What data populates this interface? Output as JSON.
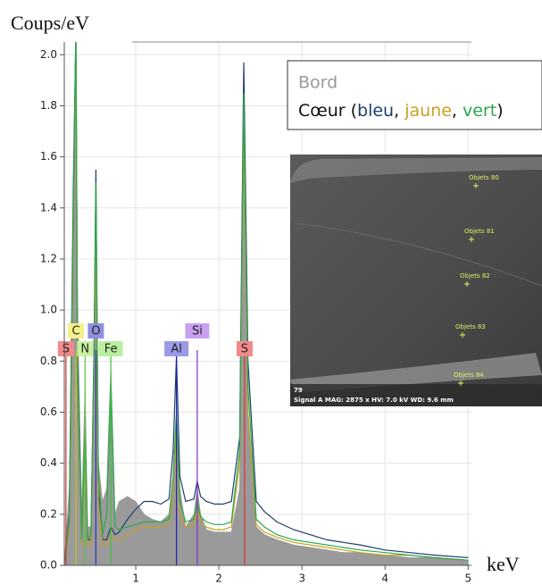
{
  "chart_data": {
    "type": "line",
    "ylabel": "Coups/eV",
    "xlabel": "keV",
    "xlim": [
      0.14,
      5.04
    ],
    "ylim": [
      0,
      2.05
    ],
    "xticks": [
      1,
      2,
      3,
      4,
      5
    ],
    "yticks": [
      {
        "value": 0,
        "label": "0.0"
      },
      0.2,
      0.4,
      0.6,
      0.8,
      {
        "value": 1,
        "label": "1.0"
      },
      1.2,
      1.4,
      1.6,
      1.8,
      {
        "value": 2,
        "label": "2.0"
      }
    ],
    "grid": true,
    "x": [
      0.15,
      0.2,
      0.25,
      0.28,
      0.3,
      0.35,
      0.39,
      0.42,
      0.46,
      0.5,
      0.52,
      0.55,
      0.6,
      0.65,
      0.7,
      0.75,
      0.8,
      0.9,
      1.0,
      1.1,
      1.2,
      1.3,
      1.4,
      1.45,
      1.49,
      1.53,
      1.6,
      1.7,
      1.74,
      1.78,
      1.85,
      1.95,
      2.05,
      2.15,
      2.25,
      2.3,
      2.35,
      2.45,
      2.55,
      2.7,
      2.9,
      3.1,
      3.3,
      3.5,
      3.7,
      4.0,
      4.3,
      4.6,
      5.0
    ],
    "series": [
      {
        "name": "Bord",
        "color": "#9a9a9a",
        "fill": true,
        "values": [
          0.05,
          0.3,
          1.2,
          2.1,
          1.0,
          0.2,
          0.7,
          0.15,
          0.15,
          0.8,
          1.45,
          0.4,
          0.25,
          0.3,
          0.78,
          0.2,
          0.25,
          0.27,
          0.25,
          0.2,
          0.18,
          0.17,
          0.2,
          0.35,
          0.6,
          0.3,
          0.15,
          0.2,
          0.3,
          0.2,
          0.14,
          0.13,
          0.13,
          0.13,
          0.3,
          1.6,
          0.6,
          0.15,
          0.12,
          0.1,
          0.08,
          0.07,
          0.06,
          0.05,
          0.05,
          0.04,
          0.03,
          0.03,
          0.02
        ]
      },
      {
        "name": "bleu",
        "color": "#1e3c6e",
        "values": [
          0.02,
          0.2,
          1.5,
          2.1,
          0.8,
          0.1,
          0.5,
          0.1,
          0.1,
          0.9,
          1.55,
          0.3,
          0.1,
          0.1,
          0.15,
          0.12,
          0.13,
          0.18,
          0.22,
          0.25,
          0.25,
          0.24,
          0.26,
          0.45,
          0.82,
          0.35,
          0.25,
          0.26,
          0.33,
          0.27,
          0.25,
          0.24,
          0.24,
          0.25,
          0.5,
          1.97,
          0.8,
          0.25,
          0.21,
          0.17,
          0.14,
          0.12,
          0.1,
          0.09,
          0.08,
          0.06,
          0.05,
          0.04,
          0.03
        ]
      },
      {
        "name": "jaune",
        "color": "#c8a020",
        "values": [
          0.02,
          0.15,
          1.3,
          2.1,
          0.7,
          0.08,
          0.45,
          0.08,
          0.08,
          0.8,
          1.3,
          0.25,
          0.08,
          0.08,
          0.12,
          0.1,
          0.1,
          0.12,
          0.14,
          0.15,
          0.15,
          0.15,
          0.16,
          0.3,
          0.55,
          0.2,
          0.15,
          0.16,
          0.22,
          0.17,
          0.15,
          0.14,
          0.14,
          0.15,
          0.4,
          1.75,
          0.6,
          0.16,
          0.13,
          0.11,
          0.09,
          0.08,
          0.07,
          0.06,
          0.05,
          0.04,
          0.04,
          0.03,
          0.02
        ]
      },
      {
        "name": "vert",
        "color": "#2aa84a",
        "values": [
          0.02,
          0.18,
          1.4,
          2.1,
          0.75,
          0.1,
          0.55,
          0.1,
          0.12,
          0.85,
          1.5,
          0.35,
          0.12,
          0.2,
          0.72,
          0.15,
          0.14,
          0.15,
          0.16,
          0.17,
          0.17,
          0.17,
          0.18,
          0.35,
          0.6,
          0.25,
          0.17,
          0.18,
          0.25,
          0.19,
          0.17,
          0.16,
          0.16,
          0.17,
          0.45,
          1.85,
          0.7,
          0.18,
          0.15,
          0.12,
          0.1,
          0.09,
          0.08,
          0.07,
          0.06,
          0.05,
          0.04,
          0.03,
          0.02
        ]
      }
    ],
    "legend": [
      {
        "text": "Bord",
        "color": "#9a9a9a"
      },
      {
        "text": "Cœur (",
        "color": "#111111"
      },
      {
        "text": "bleu",
        "color": "#1e3c6e"
      },
      {
        "text": ", ",
        "color": "#111111"
      },
      {
        "text": "jaune",
        "color": "#c8a020"
      },
      {
        "text": ", ",
        "color": "#111111"
      },
      {
        "text": "vert",
        "color": "#2aa84a"
      },
      {
        "text": ")",
        "color": "#111111"
      }
    ],
    "elements": [
      {
        "label": "S",
        "x": 0.16,
        "color": "#f08a8a",
        "line": "#e03030"
      },
      {
        "label": "C",
        "x": 0.28,
        "color": "#f6f08a",
        "line": "#c8c020"
      },
      {
        "label": "N",
        "x": 0.39,
        "color": "#c8f0a0",
        "line": "#60c040"
      },
      {
        "label": "O",
        "x": 0.52,
        "color": "#8f8fe0",
        "line": "#3030c0"
      },
      {
        "label": "Fe",
        "x": 0.7,
        "color": "#b8f0a0",
        "line": "#40c040"
      },
      {
        "label": "Al",
        "x": 1.49,
        "color": "#9a9ae8",
        "line": "#2020b0"
      },
      {
        "label": "Si",
        "x": 1.74,
        "color": "#c9a0f0",
        "line": "#8030c0"
      },
      {
        "label": "S",
        "x": 2.31,
        "color": "#f08a8a",
        "line": "#e03030"
      }
    ]
  },
  "inset": {
    "objects": [
      "Objets 80",
      "Objets 81",
      "Objets 82",
      "Objets 83",
      "Objets 84"
    ],
    "frame": "79",
    "info": "Signal A  MAG: 2875 x   HV: 7.0 kV   WD: 9.6 mm"
  }
}
